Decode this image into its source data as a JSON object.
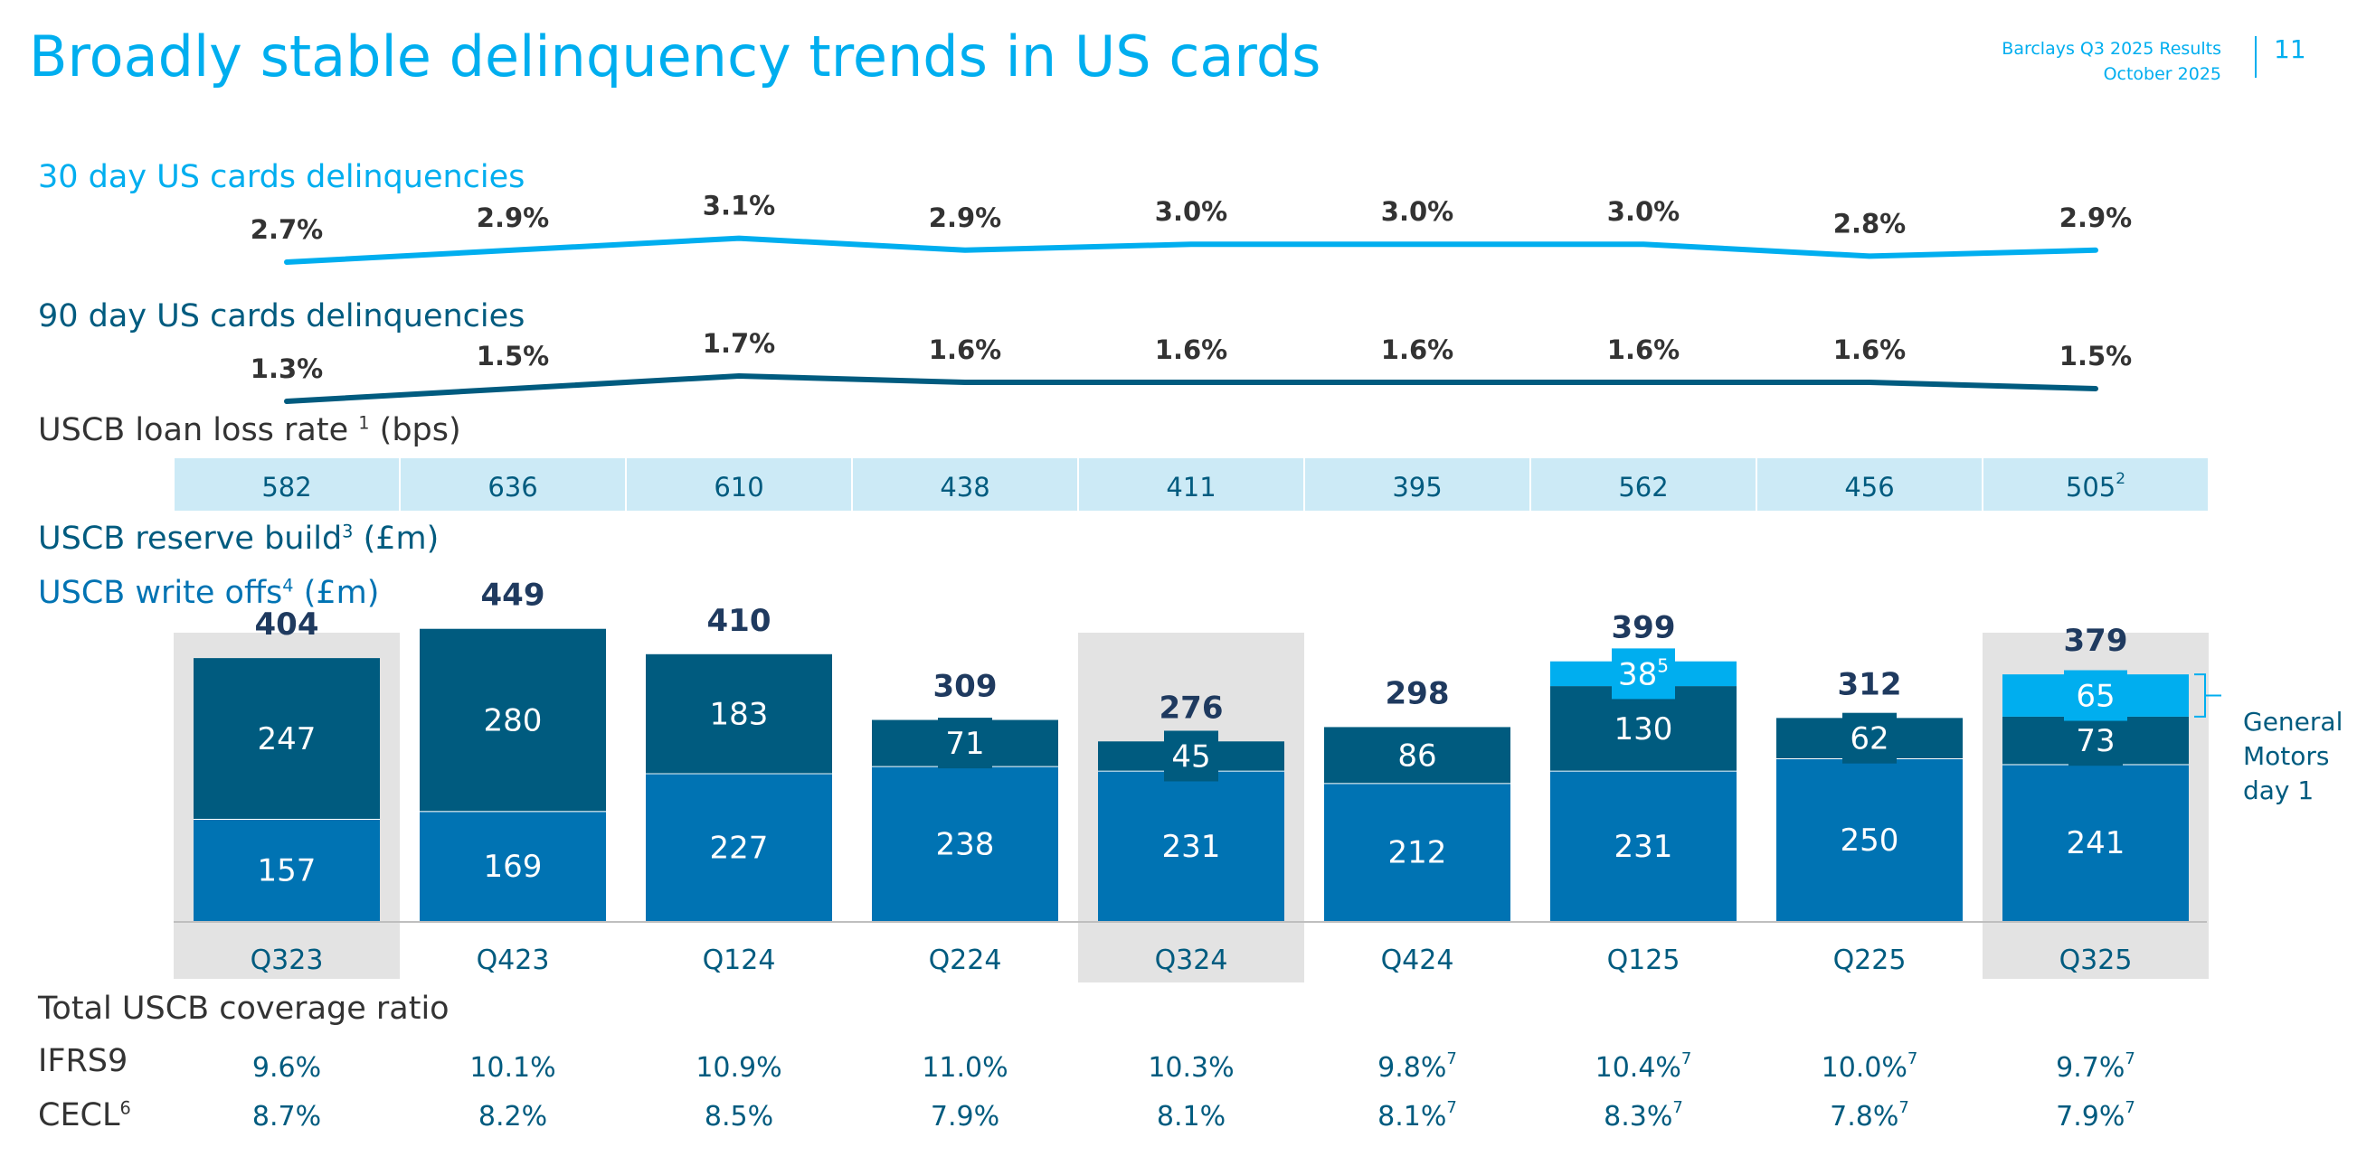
{
  "header": {
    "title": "Broadly stable delinquency trends in US cards",
    "subtitle_line1": "Barclays Q3 2025 Results",
    "subtitle_line2": "October 2025",
    "page_number": "11"
  },
  "sections": {
    "delinq30_label": "30 day US cards delinquencies",
    "delinq90_label": "90 day US cards delinquencies",
    "loss_rate_label": "USCB loan loss rate",
    "loss_rate_sup": "1",
    "loss_rate_unit": "(bps)",
    "reserve_label": "USCB reserve build",
    "reserve_sup": "3",
    "reserve_unit": "(£m)",
    "writeoff_label": "USCB write offs",
    "writeoff_sup": "4",
    "writeoff_unit": "(£m)",
    "coverage_label": "Total USCB coverage ratio",
    "ifrs9_label": "IFRS9",
    "cecl_label": "CECL",
    "cecl_sup": "6",
    "gm_label_line1": "General",
    "gm_label_line2": "Motors",
    "gm_label_line3": "day 1"
  },
  "chart_data": {
    "type": "bar",
    "categories": [
      "Q323",
      "Q423",
      "Q124",
      "Q224",
      "Q324",
      "Q424",
      "Q125",
      "Q225",
      "Q325"
    ],
    "highlighted": [
      "Q323",
      "Q324",
      "Q325"
    ],
    "delinquency_30d": {
      "values": [
        2.7,
        2.9,
        3.1,
        2.9,
        3.0,
        3.0,
        3.0,
        2.8,
        2.9
      ],
      "labels": [
        "2.7%",
        "2.9%",
        "3.1%",
        "2.9%",
        "3.0%",
        "3.0%",
        "3.0%",
        "2.8%",
        "2.9%"
      ],
      "color": "#00AEEF"
    },
    "delinquency_90d": {
      "values": [
        1.3,
        1.5,
        1.7,
        1.6,
        1.6,
        1.6,
        1.6,
        1.6,
        1.5
      ],
      "labels": [
        "1.3%",
        "1.5%",
        "1.7%",
        "1.6%",
        "1.6%",
        "1.6%",
        "1.6%",
        "1.6%",
        "1.5%"
      ],
      "color": "#005B7F"
    },
    "loan_loss_rate_bps": [
      "582",
      "636",
      "610",
      "438",
      "411",
      "395",
      "562",
      "456",
      "505"
    ],
    "loan_loss_rate_last_sup": "2",
    "series": [
      {
        "name": "USCB write offs",
        "values": [
          157,
          169,
          227,
          238,
          231,
          212,
          231,
          250,
          241
        ],
        "color": "#0073B3"
      },
      {
        "name": "USCB reserve build",
        "values": [
          247,
          280,
          183,
          71,
          45,
          86,
          130,
          62,
          73
        ],
        "color": "#005B7F"
      },
      {
        "name": "General Motors day 1",
        "values": [
          0,
          0,
          0,
          0,
          0,
          0,
          38,
          0,
          65
        ],
        "color": "#00AEEF"
      }
    ],
    "gm_sup": [
      "",
      "",
      "",
      "",
      "",
      "",
      "5",
      "",
      ""
    ],
    "totals": [
      "404",
      "449",
      "410",
      "309",
      "276",
      "298",
      "399",
      "312",
      "379"
    ],
    "ylim": [
      0,
      460
    ],
    "coverage_ifrs9": [
      {
        "v": "9.6%",
        "s": ""
      },
      {
        "v": "10.1%",
        "s": ""
      },
      {
        "v": "10.9%",
        "s": ""
      },
      {
        "v": "11.0%",
        "s": ""
      },
      {
        "v": "10.3%",
        "s": ""
      },
      {
        "v": "9.8%",
        "s": "7"
      },
      {
        "v": "10.4%",
        "s": "7"
      },
      {
        "v": "10.0%",
        "s": "7"
      },
      {
        "v": "9.7%",
        "s": "7"
      }
    ],
    "coverage_cecl": [
      {
        "v": "8.7%",
        "s": ""
      },
      {
        "v": "8.2%",
        "s": ""
      },
      {
        "v": "8.5%",
        "s": ""
      },
      {
        "v": "7.9%",
        "s": ""
      },
      {
        "v": "8.1%",
        "s": ""
      },
      {
        "v": "8.1%",
        "s": "7"
      },
      {
        "v": "8.3%",
        "s": "7"
      },
      {
        "v": "7.8%",
        "s": "7"
      },
      {
        "v": "7.9%",
        "s": "7"
      }
    ]
  }
}
